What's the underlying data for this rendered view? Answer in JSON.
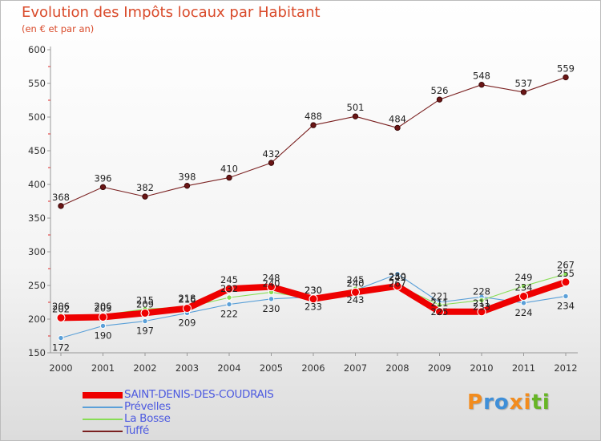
{
  "chart_data": {
    "type": "line",
    "title": "Evolution des Impôts locaux par Habitant",
    "subtitle": "(en € et par an)",
    "xlabel": "",
    "ylabel": "",
    "ylim": [
      150,
      600
    ],
    "y_ticks": [
      150,
      200,
      250,
      300,
      350,
      400,
      450,
      500,
      550,
      600
    ],
    "categories": [
      "2000",
      "2001",
      "2002",
      "2003",
      "2004",
      "2005",
      "2006",
      "2007",
      "2008",
      "2009",
      "2010",
      "2011",
      "2012"
    ],
    "grid": false,
    "legend_position": "bottom-left",
    "series": [
      {
        "name": "Tuffé",
        "color": "#7a2020",
        "values": [
          368,
          396,
          382,
          398,
          410,
          432,
          488,
          501,
          484,
          526,
          548,
          537,
          559
        ],
        "labels": [
          "368",
          "396",
          "382",
          "398",
          "410",
          "432",
          "488",
          "501",
          "484",
          "526",
          "548",
          "537",
          "559"
        ]
      },
      {
        "name": "Prévelles",
        "color": "#5ba0d8",
        "values": [
          172,
          190,
          197,
          209,
          222,
          230,
          233,
          243,
          267,
          225,
          233,
          224,
          234
        ],
        "labels": [
          "172",
          "190",
          "197",
          "209",
          "222",
          "230",
          "233",
          "243",
          "267",
          "225",
          "233",
          "224",
          "234"
        ]
      },
      {
        "name": "La Bosse",
        "color": "#88dd55",
        "values": [
          206,
          206,
          215,
          218,
          232,
          240,
          230,
          245,
          250,
          221,
          228,
          249,
          267
        ],
        "labels": [
          "206",
          "206",
          "215",
          "218",
          "232",
          "240",
          "230",
          "245",
          "250",
          "221",
          "228",
          "249",
          "267"
        ]
      },
      {
        "name": "SAINT-DENIS-DES-COUDRAIS",
        "color": "#ee0000",
        "values": [
          202,
          203,
          209,
          216,
          245,
          248,
          230,
          240,
          249,
          211,
          211,
          234,
          255
        ],
        "labels": [
          "202",
          "203",
          "209",
          "216",
          "245",
          "248",
          "230",
          "240",
          "249",
          "211",
          "211",
          "234",
          "255"
        ]
      }
    ],
    "legend_order": [
      "SAINT-DENIS-DES-COUDRAIS",
      "Prévelles",
      "La Bosse",
      "Tuffé"
    ]
  },
  "brand": {
    "text": "Proxiti",
    "letters": [
      {
        "ch": "P",
        "color": "#f28c1e"
      },
      {
        "ch": "r",
        "color": "#3f8fd8"
      },
      {
        "ch": "o",
        "color": "#3f8fd8"
      },
      {
        "ch": "x",
        "color": "#f28c1e"
      },
      {
        "ch": "i",
        "color": "#f28c1e"
      },
      {
        "ch": "t",
        "color": "#67b526"
      },
      {
        "ch": "i",
        "color": "#67b526"
      }
    ]
  }
}
